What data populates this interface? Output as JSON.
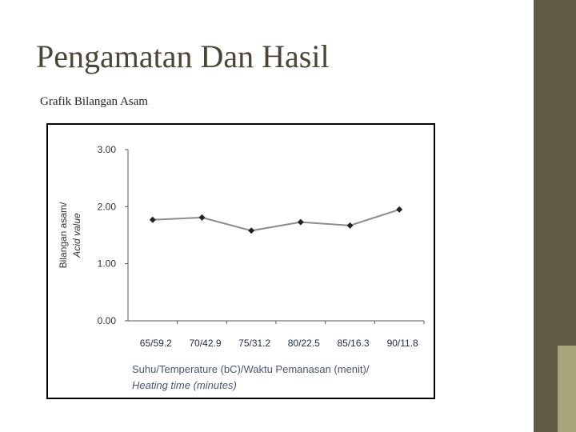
{
  "slide": {
    "title": "Pengamatan Dan Hasil",
    "subtitle": "Grafik Bilangan Asam"
  },
  "chart_data": {
    "type": "line",
    "ylabel_lines": [
      "Bilangan asam/",
      "Acid value"
    ],
    "xlabel_lines": [
      "Suhu/Temperature (bC)/Waktu Pemanasan (menit)/",
      "Heating time (minutes)"
    ],
    "categories": [
      "65/59.2",
      "70/42.9",
      "75/31.2",
      "80/22.5",
      "85/16.3",
      "90/11.8"
    ],
    "values": [
      1.77,
      1.81,
      1.58,
      1.73,
      1.67,
      1.95
    ],
    "color": "#8c8c8c",
    "marker_color": "#222222",
    "ylim": [
      0,
      3
    ],
    "yticks": [
      {
        "value": 0,
        "label": "0.00"
      },
      {
        "value": 1,
        "label": "1.00"
      },
      {
        "value": 2,
        "label": "2.00"
      },
      {
        "value": 3,
        "label": "3.00"
      }
    ]
  }
}
